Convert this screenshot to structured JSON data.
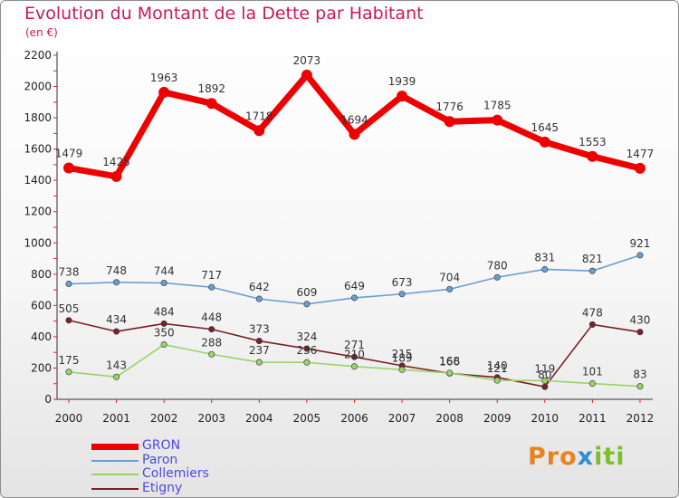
{
  "title": "Evolution du Montant de la Dette par Habitant",
  "subtitle": "(en €)",
  "logo": {
    "text": "Proxiti",
    "part1": "Pro",
    "part2": "x",
    "part3": "iti"
  },
  "chart_data": {
    "type": "line",
    "title": "Evolution du Montant de la Dette par Habitant",
    "ylabel": "(en €)",
    "xlabel": "",
    "ylim": [
      0,
      2200
    ],
    "yticks": [
      0,
      200,
      400,
      600,
      800,
      1000,
      1200,
      1400,
      1600,
      1800,
      2000,
      2200
    ],
    "x": [
      "2000",
      "2001",
      "2002",
      "2003",
      "2004",
      "2005",
      "2006",
      "2007",
      "2008",
      "2009",
      "2010",
      "2011",
      "2012"
    ],
    "grid": false,
    "legend_position": "bottom-left",
    "series": [
      {
        "name": "GRON",
        "color": "#ee0000",
        "values": [
          1479,
          1425,
          1963,
          1892,
          1718,
          2073,
          1694,
          1939,
          1776,
          1785,
          1645,
          1553,
          1477
        ]
      },
      {
        "name": "Paron",
        "color": "#6a9ed2",
        "values": [
          738,
          748,
          744,
          717,
          642,
          609,
          649,
          673,
          704,
          780,
          831,
          821,
          921
        ]
      },
      {
        "name": "Collemiers",
        "color": "#9ad36a",
        "values": [
          175,
          143,
          350,
          288,
          237,
          236,
          210,
          189,
          168,
          121,
          119,
          101,
          83
        ]
      },
      {
        "name": "Etigny",
        "color": "#7a1f28",
        "values": [
          505,
          434,
          484,
          448,
          373,
          324,
          271,
          215,
          166,
          140,
          80,
          478,
          430
        ]
      }
    ]
  }
}
